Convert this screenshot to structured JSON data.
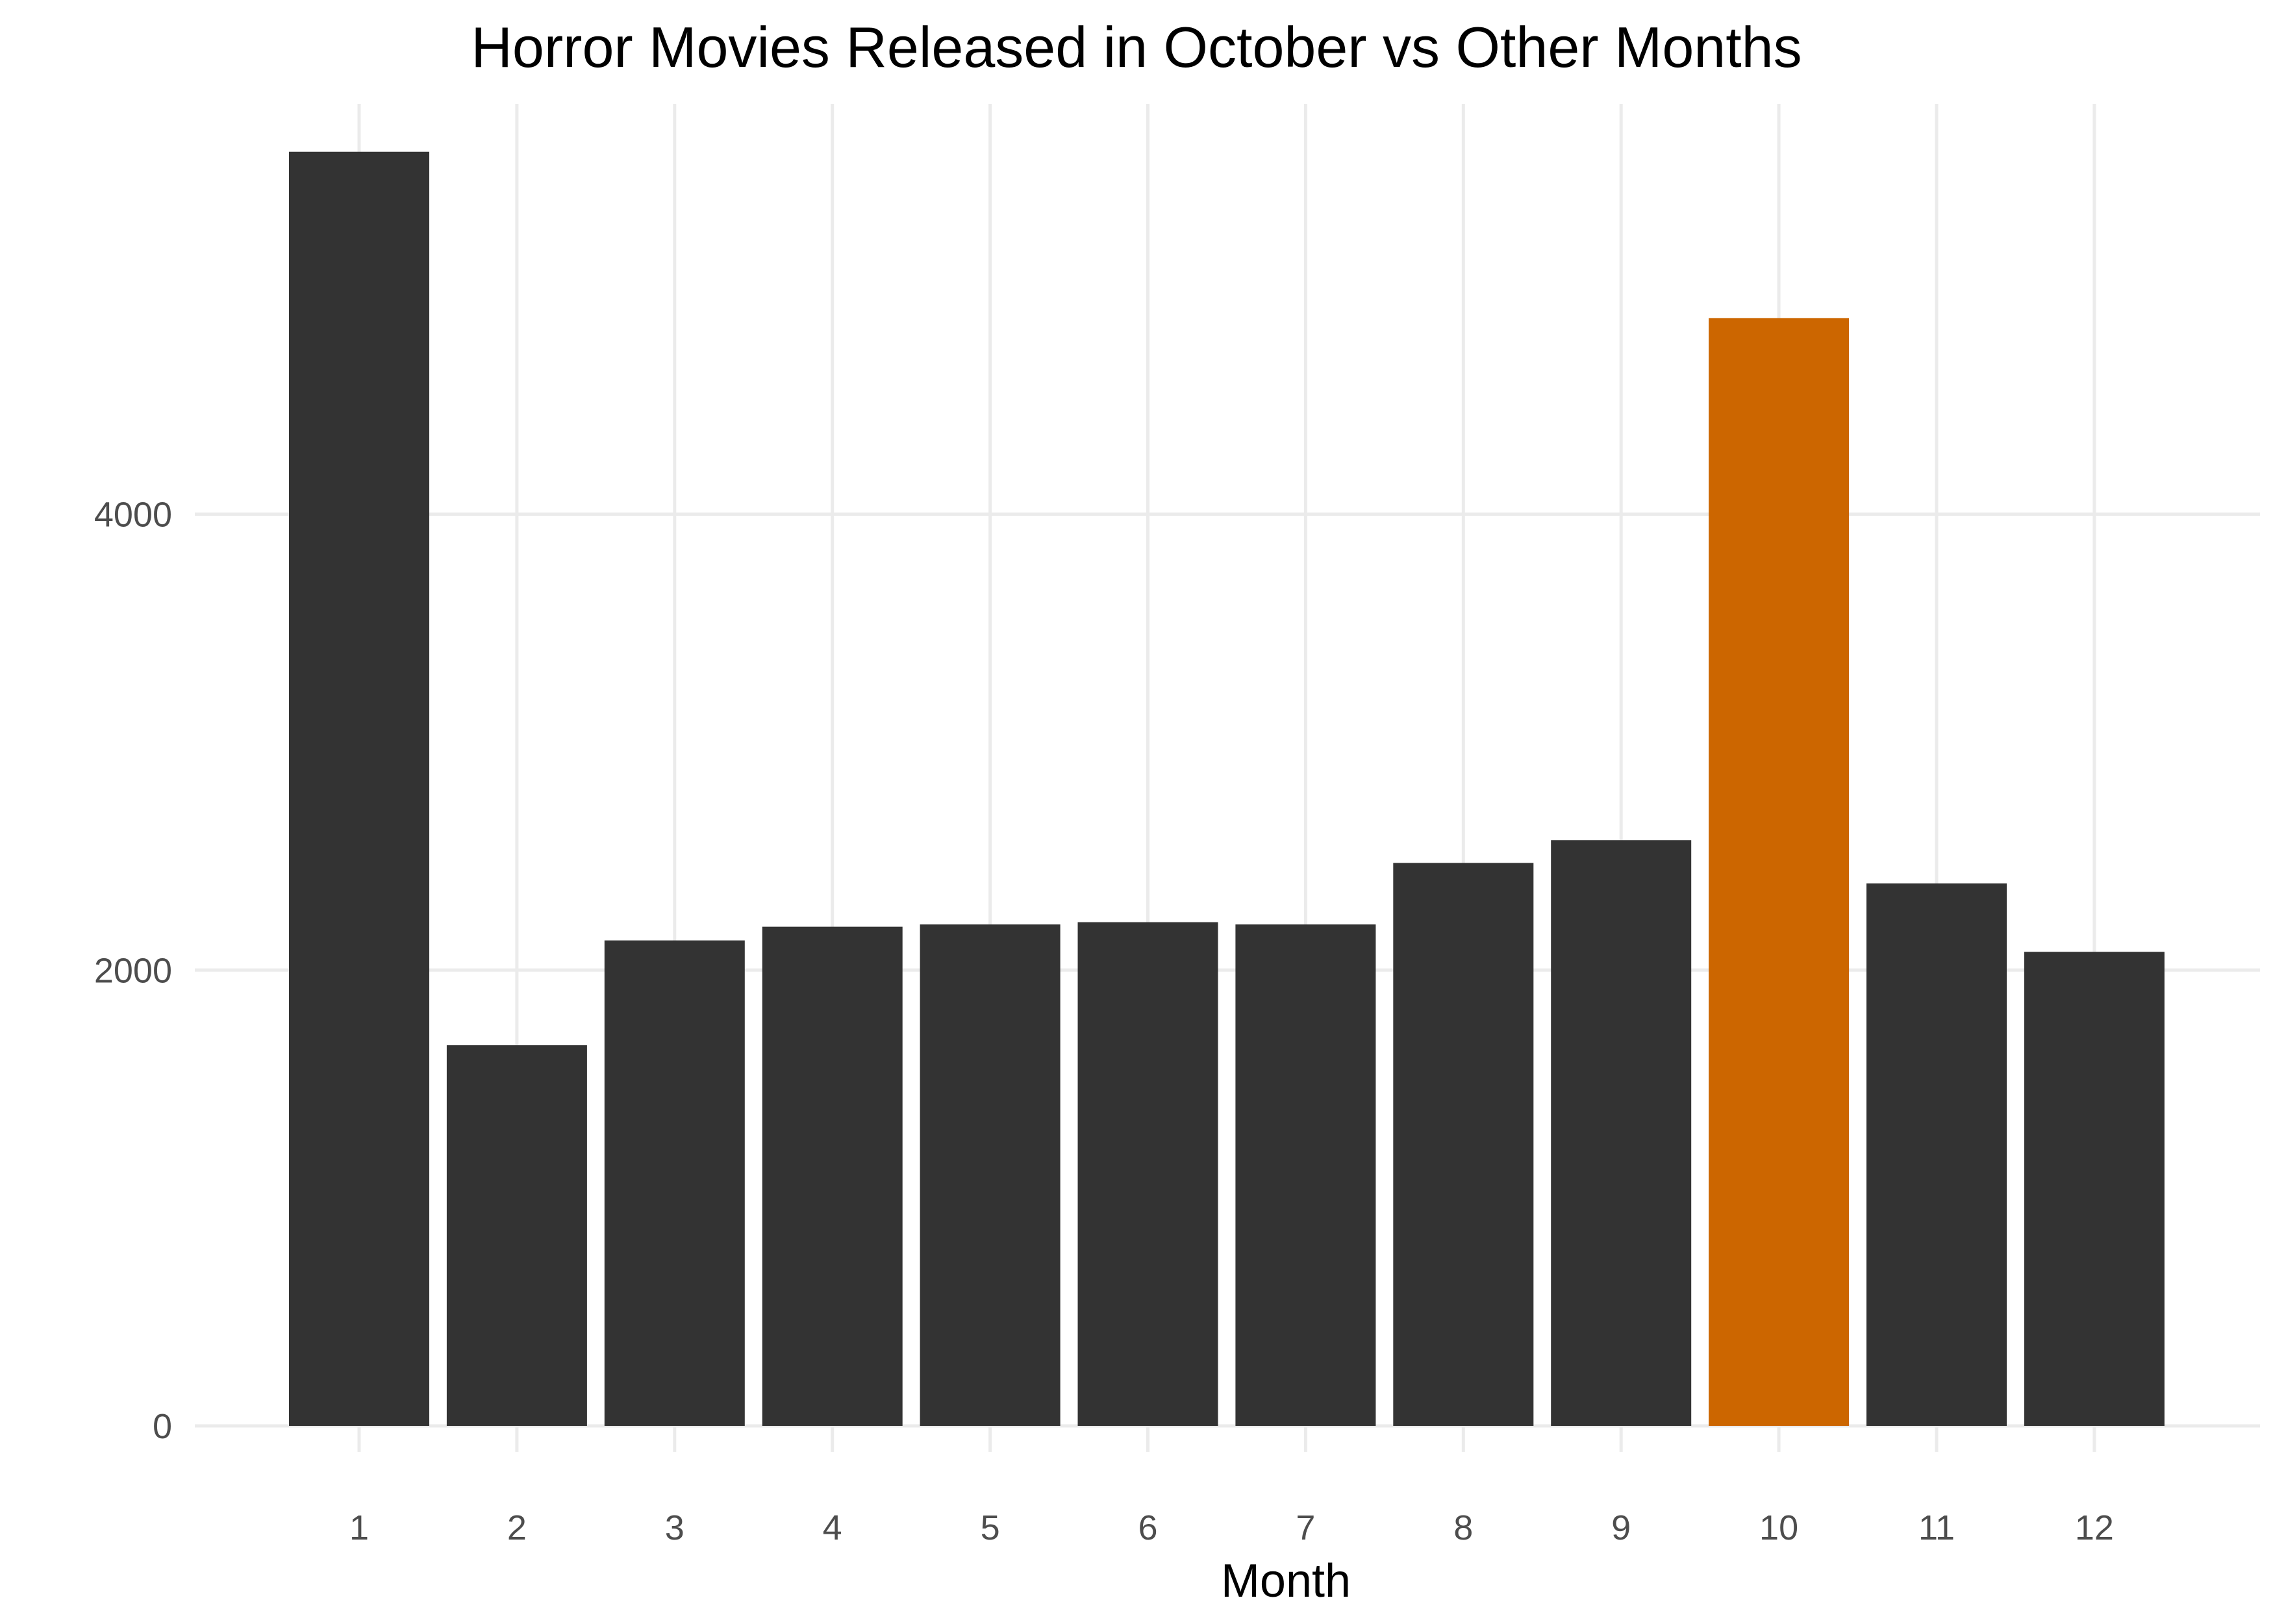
{
  "chart_data": {
    "type": "bar",
    "title": "Horror Movies Released in October vs Other Months",
    "xlabel": "Month",
    "ylabel": "",
    "categories": [
      "1",
      "2",
      "3",
      "4",
      "5",
      "6",
      "7",
      "8",
      "9",
      "10",
      "11",
      "12"
    ],
    "values": [
      5590,
      1670,
      2130,
      2190,
      2200,
      2210,
      2200,
      2470,
      2570,
      4860,
      2380,
      2080
    ],
    "ylim": [
      0,
      5800
    ],
    "yticks": [
      0,
      2000,
      4000
    ],
    "grid": true,
    "legend": "none",
    "colors": {
      "default_bar": "#333333",
      "highlight_bar": "#cc6600",
      "grid": "#ebebeb",
      "tick_text": "#4d4d4d"
    },
    "highlight_category": "10"
  }
}
